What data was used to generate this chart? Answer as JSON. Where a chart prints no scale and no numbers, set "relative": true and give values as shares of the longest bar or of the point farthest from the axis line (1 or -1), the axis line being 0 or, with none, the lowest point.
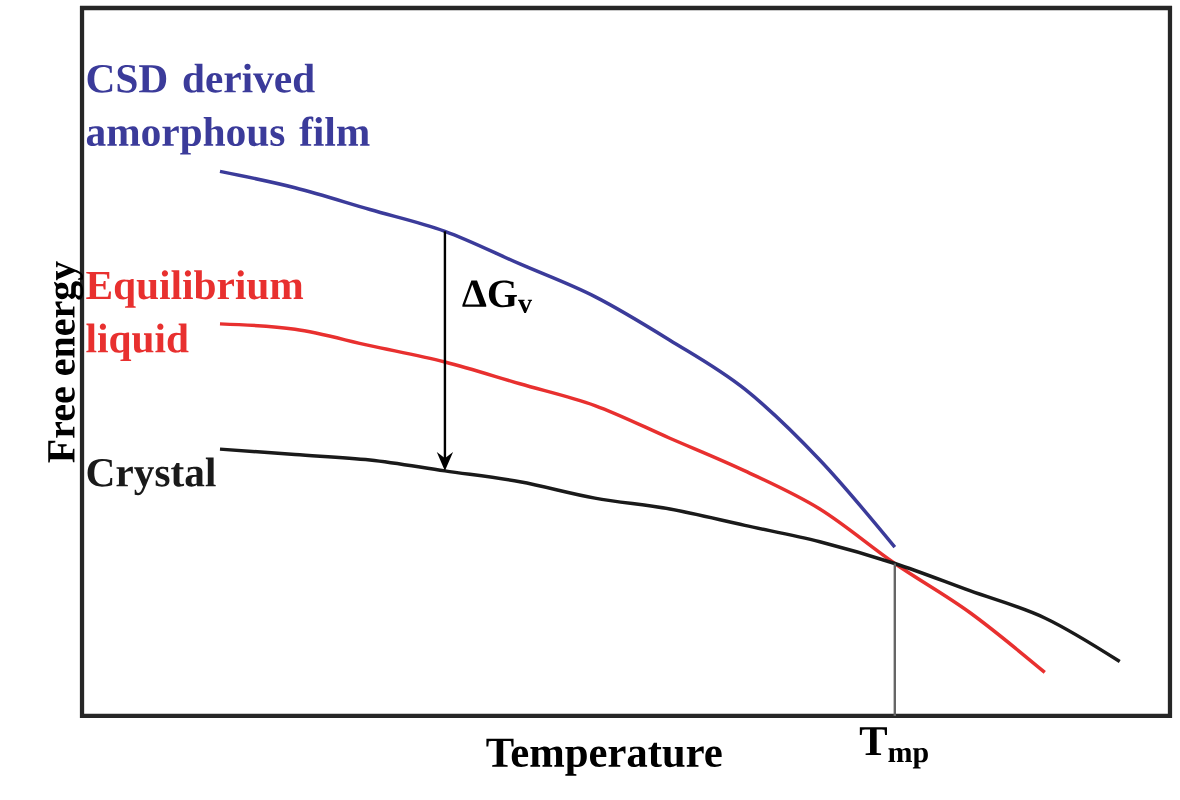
{
  "chart_data": {
    "type": "line",
    "relative": true,
    "xlabel": "Temperature",
    "ylabel": "Free energy",
    "categories": [
      null,
      null,
      null,
      null,
      null,
      null,
      null,
      null,
      null,
      null,
      null,
      null,
      null
    ],
    "series": [
      {
        "name": "CSD derived amorphous film",
        "color": "#3b3b9a",
        "values": [
          1.0,
          0.97,
          0.93,
          0.89,
          0.83,
          0.77,
          0.69,
          0.6,
          0.47,
          0.31,
          null,
          null,
          null
        ]
      },
      {
        "name": "Equilibrium liquid",
        "color": "#e8302f",
        "values": [
          0.72,
          0.71,
          0.68,
          0.65,
          0.61,
          0.57,
          0.51,
          0.45,
          0.38,
          0.28,
          0.19,
          0.08,
          null
        ]
      },
      {
        "name": "Crystal",
        "color": "#1a1a1a",
        "values": [
          0.49,
          0.48,
          0.47,
          0.45,
          0.43,
          0.4,
          0.38,
          0.35,
          0.32,
          0.28,
          0.23,
          0.18,
          0.1
        ]
      }
    ],
    "annotations": [
      "ΔG$_{v}$",
      "T$_{mp}$"
    ],
    "grid": false,
    "marker": "none",
    "line_style": "solid"
  }
}
